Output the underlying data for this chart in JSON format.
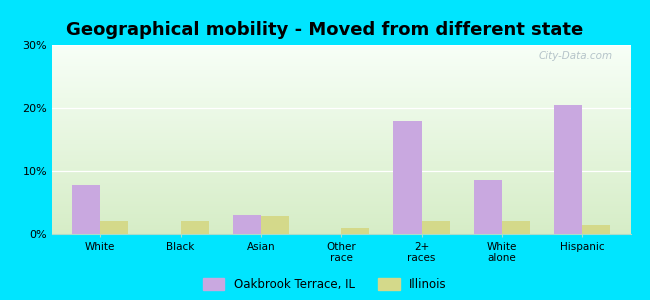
{
  "title": "Geographical mobility - Moved from different state",
  "categories": [
    "White",
    "Black",
    "Asian",
    "Other\nrace",
    "2+\nraces",
    "White\nalone",
    "Hispanic"
  ],
  "oakbrook_values": [
    7.8,
    0.0,
    3.0,
    0.0,
    18.0,
    8.5,
    20.5
  ],
  "illinois_values": [
    2.0,
    2.0,
    2.8,
    1.0,
    2.0,
    2.0,
    1.5
  ],
  "bar_color_oakbrook": "#c9a8e0",
  "bar_color_illinois": "#d4d98a",
  "background_outer": "#00e5ff",
  "background_inner": "#eef4e2",
  "ylim": [
    0,
    30
  ],
  "yticks": [
    0,
    10,
    20,
    30
  ],
  "bar_width": 0.35,
  "legend_label_oakbrook": "Oakbrook Terrace, IL",
  "legend_label_illinois": "Illinois",
  "title_fontsize": 13,
  "watermark": "City-Data.com"
}
